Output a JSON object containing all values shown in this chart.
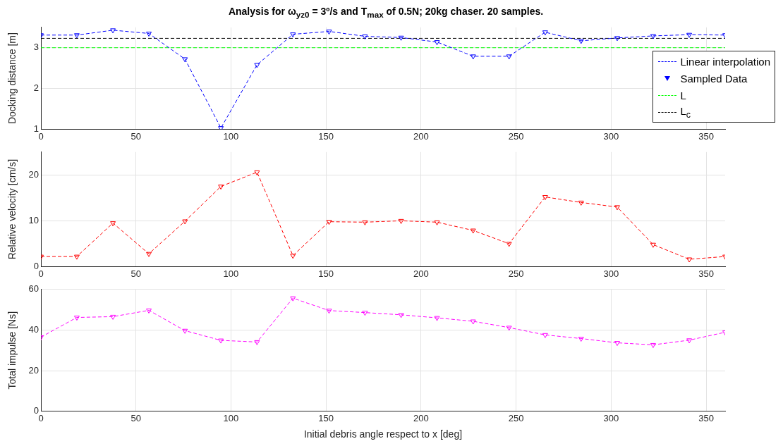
{
  "chart_data": [
    {
      "type": "line",
      "title": "Analysis for ω$_{yz0}$ = 3º/s and T$_{max}$ of 0.5N; 20kg chaser. 20 samples.",
      "ylabel": "Docking distance [m]",
      "x": [
        0,
        18.9,
        37.9,
        56.8,
        75.8,
        94.7,
        113.7,
        132.6,
        151.6,
        170.5,
        189.5,
        208.4,
        227.4,
        246.3,
        265.3,
        284.2,
        303.2,
        322.1,
        341.1,
        360
      ],
      "series": [
        {
          "name": "Linear interpolation",
          "type": "line",
          "color": "#0000ff",
          "line_style": "dashed",
          "marker": "none",
          "values": [
            3.31,
            3.31,
            3.43,
            3.35,
            2.72,
            1.03,
            2.58,
            3.33,
            3.4,
            3.28,
            3.25,
            3.14,
            2.79,
            2.79,
            3.38,
            3.17,
            3.24,
            3.29,
            3.32,
            3.31
          ]
        },
        {
          "name": "Sampled Data",
          "type": "scatter",
          "color": "#0000ff",
          "marker": "triangle",
          "values": [
            3.31,
            3.31,
            3.43,
            3.35,
            2.72,
            1.03,
            2.58,
            3.33,
            3.4,
            3.28,
            3.25,
            3.14,
            2.79,
            2.79,
            3.38,
            3.17,
            3.24,
            3.29,
            3.32,
            3.31
          ]
        }
      ],
      "ref_lines": [
        {
          "axis": "y",
          "value": 3,
          "label": "L",
          "color": "#00ff00",
          "line_style": "dashed"
        },
        {
          "axis": "y",
          "value": 3.23,
          "label": "L$_{c}$",
          "color": "#000000",
          "line_style": "dashed"
        }
      ],
      "xlim": [
        0,
        360
      ],
      "xticks": [
        0,
        50,
        100,
        150,
        200,
        250,
        300,
        350
      ],
      "ylim": [
        1,
        3.5
      ],
      "yticks": [
        1,
        2,
        3
      ],
      "grid": true,
      "legend": "right"
    },
    {
      "type": "line",
      "ylabel": "Relative velocity [cm/s]",
      "x": [
        0,
        18.9,
        37.9,
        56.8,
        75.8,
        94.7,
        113.7,
        132.6,
        151.6,
        170.5,
        189.5,
        208.4,
        227.4,
        246.3,
        265.3,
        284.2,
        303.2,
        322.1,
        341.1,
        360
      ],
      "series": [
        {
          "color": "#ff0000",
          "values": [
            2.2,
            2.2,
            9.5,
            2.8,
            9.9,
            17.5,
            20.6,
            2.4,
            9.8,
            9.7,
            10,
            9.7,
            7.9,
            5,
            15.2,
            14,
            13,
            4.8,
            1.6,
            2.2
          ]
        }
      ],
      "line_style": "dashed",
      "marker": "triangle",
      "xlim": [
        0,
        360
      ],
      "xticks": [
        0,
        50,
        100,
        150,
        200,
        250,
        300,
        350
      ],
      "ylim": [
        0,
        25
      ],
      "yticks": [
        0,
        10,
        20
      ],
      "grid": true
    },
    {
      "type": "line",
      "ylabel": "Total impulse [Ns]",
      "xlabel": "Initial debris angle respect to x [deg]",
      "x": [
        0,
        18.9,
        37.9,
        56.8,
        75.8,
        94.7,
        113.7,
        132.6,
        151.6,
        170.5,
        189.5,
        208.4,
        227.4,
        246.3,
        265.3,
        284.2,
        303.2,
        322.1,
        341.1,
        360
      ],
      "series": [
        {
          "color": "#ff00ff",
          "values": [
            36.5,
            46.2,
            46.6,
            49.7,
            39.7,
            34.9,
            34.1,
            55.7,
            49.6,
            48.6,
            47.5,
            46,
            44.3,
            41.2,
            37.6,
            35.8,
            33.7,
            32.7,
            35,
            38.9
          ]
        }
      ],
      "line_style": "dashed",
      "marker": "triangle",
      "xlim": [
        0,
        360
      ],
      "xticks": [
        0,
        50,
        100,
        150,
        200,
        250,
        300,
        350
      ],
      "ylim": [
        0,
        60
      ],
      "yticks": [
        0,
        20,
        40,
        60
      ],
      "grid": true
    }
  ]
}
